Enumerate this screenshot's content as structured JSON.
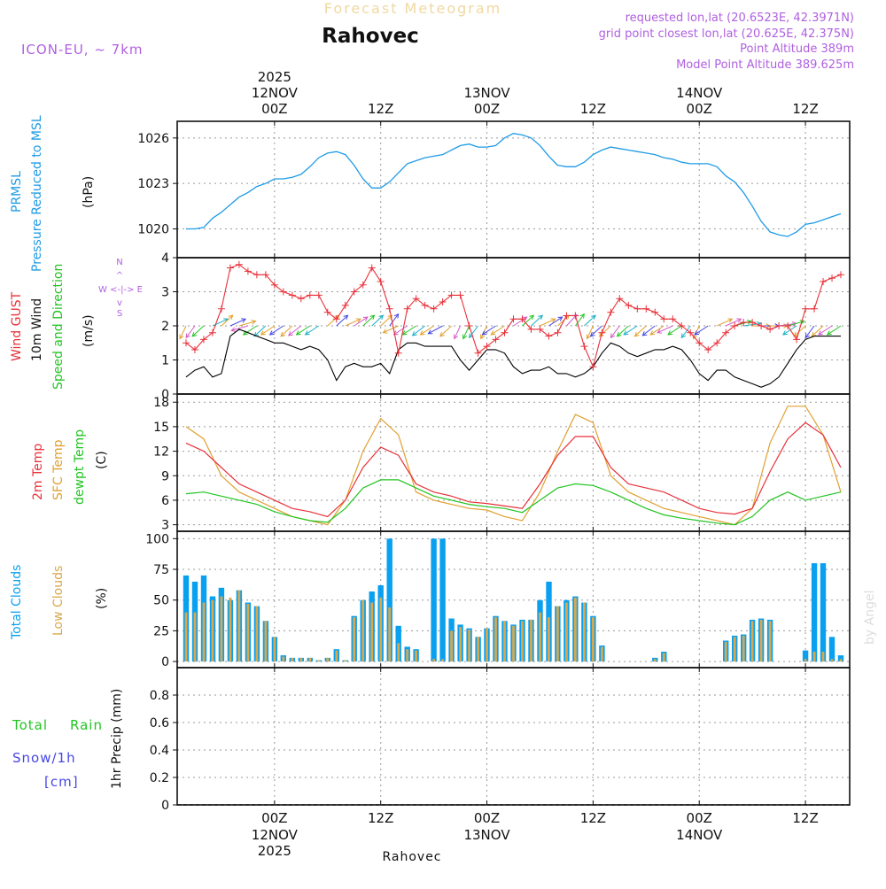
{
  "header": {
    "banner": "Forecast Meteogram",
    "location": "Rahovec",
    "model": "ICON-EU, ~ 7km",
    "requested": "requested lon,lat (20.6523E, 42.3971N)",
    "grid_point": "grid point closest lon,lat (20.625E, 42.375N)",
    "point_altitude": "Point Altitude 389m",
    "model_altitude": "Model Point Altitude 389.625m"
  },
  "footer": {
    "location": "Rahovec",
    "credit": "by Angel"
  },
  "time_axis": {
    "year": "2025",
    "ticks": [
      {
        "hour": 0,
        "label": "00Z",
        "date": "12NOV"
      },
      {
        "hour": 12,
        "label": "12Z",
        "date": ""
      },
      {
        "hour": 24,
        "label": "00Z",
        "date": "13NOV"
      },
      {
        "hour": 36,
        "label": "12Z",
        "date": ""
      },
      {
        "hour": 48,
        "label": "00Z",
        "date": "14NOV"
      },
      {
        "hour": 60,
        "label": "12Z",
        "date": ""
      }
    ],
    "range_hours": [
      -11,
      65
    ]
  },
  "colors": {
    "pressure": "#1e9be6",
    "gust": "#e8313a",
    "wind": "#000000",
    "direction": "#22c422",
    "temp2m": "#e8313a",
    "sfc": "#e0a030",
    "dewpt": "#22c422",
    "total_cloud": "#0aa0f0",
    "low_cloud": "#d9a84a",
    "rain": "#22c422",
    "snow": "#4646e6",
    "header_lilac": "#b060e0",
    "banner": "#f0d9a0"
  },
  "panel_labels": {
    "pressure": [
      "PRMSL",
      "Pressure Reduced to MSL"
    ],
    "pressure_unit": "(hPa)",
    "wind_gust": "Wind GUST",
    "wind_10m": "10m Wind",
    "wind_dir": "Speed and Direction",
    "wind_unit": "(m/s)",
    "compass_n": "N",
    "compass_s": "S",
    "compass_we": "W <-|-> E",
    "temp2m": "2m Temp",
    "sfc": "SFC Temp",
    "dewpt": "dewpt Temp",
    "temp_unit": "(C)",
    "total_clouds": "Total Clouds",
    "low_clouds": "Low Clouds",
    "cloud_unit": "(%)",
    "total": "Total",
    "rain": "Rain",
    "snow": "Snow/1h",
    "snow_unit": "[cm]",
    "precip": "1hr Precip (mm)"
  },
  "chart_data": [
    {
      "type": "line",
      "title": "PRMSL Pressure Reduced to MSL",
      "ylabel": "hPa",
      "ylim": [
        1018.1,
        1027.1
      ],
      "yticks": [
        1020,
        1023,
        1026
      ],
      "yticklabels": [
        "1020",
        "1023",
        "1026"
      ],
      "series": [
        {
          "name": "PRMSL",
          "x": [
            -10,
            -9,
            -8,
            -7,
            -6,
            -5,
            -4,
            -3,
            -2,
            -1,
            0,
            1,
            2,
            3,
            4,
            5,
            6,
            7,
            8,
            9,
            10,
            11,
            12,
            13,
            14,
            15,
            16,
            17,
            18,
            19,
            20,
            21,
            22,
            23,
            24,
            25,
            26,
            27,
            28,
            29,
            30,
            31,
            32,
            33,
            34,
            35,
            36,
            37,
            38,
            39,
            40,
            41,
            42,
            43,
            44,
            45,
            46,
            47,
            48,
            49,
            50,
            51,
            52,
            53,
            54,
            55,
            56,
            57,
            58,
            59,
            60,
            61,
            62,
            63,
            64
          ],
          "values": [
            1020.0,
            1020.0,
            1020.1,
            1020.7,
            1021.1,
            1021.6,
            1022.1,
            1022.4,
            1022.8,
            1023.0,
            1023.3,
            1023.3,
            1023.4,
            1023.6,
            1024.1,
            1024.7,
            1025.0,
            1025.1,
            1024.9,
            1024.2,
            1023.3,
            1022.7,
            1022.7,
            1023.1,
            1023.7,
            1024.3,
            1024.5,
            1024.7,
            1024.8,
            1024.9,
            1025.2,
            1025.5,
            1025.6,
            1025.4,
            1025.4,
            1025.5,
            1026.0,
            1026.3,
            1026.2,
            1026.0,
            1025.5,
            1024.8,
            1024.2,
            1024.1,
            1024.1,
            1024.4,
            1024.9,
            1025.2,
            1025.4,
            1025.3,
            1025.2,
            1025.1,
            1025.0,
            1024.9,
            1024.7,
            1024.6,
            1024.4,
            1024.3,
            1024.3,
            1024.3,
            1024.1,
            1023.5,
            1023.1,
            1022.4,
            1021.5,
            1020.5,
            1019.8,
            1019.6,
            1019.5,
            1019.8,
            1020.3,
            1020.4,
            1020.6,
            1020.8,
            1021.0
          ]
        }
      ]
    },
    {
      "type": "line",
      "title": "Wind GUST / 10m Wind Speed and Direction",
      "ylabel": "m/s",
      "ylim": [
        0,
        4
      ],
      "yticks": [
        0,
        1,
        2,
        3,
        4
      ],
      "yticklabels": [
        "0",
        "1",
        "2",
        "3",
        "4"
      ],
      "series": [
        {
          "name": "Wind GUST",
          "x": [
            -10,
            -9,
            -8,
            -7,
            -6,
            -5,
            -4,
            -3,
            -2,
            -1,
            0,
            1,
            2,
            3,
            4,
            5,
            6,
            7,
            8,
            9,
            10,
            11,
            12,
            13,
            14,
            15,
            16,
            17,
            18,
            19,
            20,
            21,
            22,
            23,
            24,
            25,
            26,
            27,
            28,
            29,
            30,
            31,
            32,
            33,
            34,
            35,
            36,
            37,
            38,
            39,
            40,
            41,
            42,
            43,
            44,
            45,
            46,
            47,
            48,
            49,
            50,
            51,
            52,
            53,
            54,
            55,
            56,
            57,
            58,
            59,
            60,
            61,
            62,
            63,
            64
          ],
          "values": [
            1.5,
            1.3,
            1.6,
            1.8,
            2.5,
            3.7,
            3.8,
            3.6,
            3.5,
            3.5,
            3.2,
            3.0,
            2.9,
            2.8,
            2.9,
            2.9,
            2.4,
            2.2,
            2.6,
            3.0,
            3.2,
            3.7,
            3.3,
            2.5,
            1.2,
            2.5,
            2.8,
            2.6,
            2.5,
            2.7,
            2.9,
            2.9,
            2.0,
            1.2,
            1.4,
            1.6,
            1.8,
            2.2,
            2.2,
            1.9,
            1.9,
            1.7,
            1.8,
            2.3,
            2.3,
            1.4,
            0.8,
            1.8,
            2.4,
            2.8,
            2.6,
            2.5,
            2.5,
            2.4,
            2.2,
            2.2,
            2.0,
            1.8,
            1.5,
            1.3,
            1.5,
            1.8,
            2.0,
            2.1,
            2.1,
            2.0,
            1.9,
            2.0,
            2.0,
            1.6,
            2.5,
            2.5,
            3.3,
            3.4,
            3.5
          ]
        },
        {
          "name": "10m Wind",
          "x": [
            -10,
            -9,
            -8,
            -7,
            -6,
            -5,
            -4,
            -3,
            -2,
            -1,
            0,
            1,
            2,
            3,
            4,
            5,
            6,
            7,
            8,
            9,
            10,
            11,
            12,
            13,
            14,
            15,
            16,
            17,
            18,
            19,
            20,
            21,
            22,
            23,
            24,
            25,
            26,
            27,
            28,
            29,
            30,
            31,
            32,
            33,
            34,
            35,
            36,
            37,
            38,
            39,
            40,
            41,
            42,
            43,
            44,
            45,
            46,
            47,
            48,
            49,
            50,
            51,
            52,
            53,
            54,
            55,
            56,
            57,
            58,
            59,
            60,
            61,
            62,
            63,
            64
          ],
          "values": [
            0.5,
            0.7,
            0.8,
            0.5,
            0.6,
            1.7,
            1.9,
            1.8,
            1.7,
            1.6,
            1.5,
            1.5,
            1.4,
            1.3,
            1.4,
            1.3,
            1.0,
            0.4,
            0.8,
            0.9,
            0.8,
            0.8,
            0.9,
            0.6,
            1.3,
            1.5,
            1.5,
            1.4,
            1.4,
            1.4,
            1.4,
            1.0,
            0.7,
            1.0,
            1.3,
            1.3,
            1.2,
            0.8,
            0.6,
            0.7,
            0.7,
            0.8,
            0.6,
            0.6,
            0.5,
            0.6,
            0.8,
            1.2,
            1.5,
            1.4,
            1.2,
            1.1,
            1.2,
            1.3,
            1.3,
            1.4,
            1.3,
            1.0,
            0.6,
            0.4,
            0.7,
            0.7,
            0.5,
            0.4,
            0.3,
            0.2,
            0.3,
            0.5,
            0.9,
            1.3,
            1.6,
            1.7,
            1.7,
            1.7,
            1.7
          ]
        }
      ],
      "direction_arrows": "plotted along the 2 m/s line; tail shows direction wind blows from"
    },
    {
      "type": "line",
      "title": "2m Temp / SFC Temp / dewpt Temp",
      "ylabel": "C",
      "ylim": [
        2.2,
        19
      ],
      "yticks": [
        3,
        6,
        9,
        12,
        15,
        18
      ],
      "yticklabels": [
        "3",
        "6",
        "9",
        "12",
        "15",
        "18"
      ],
      "series": [
        {
          "name": "2m Temp",
          "x": [
            -10,
            -8,
            -6,
            -4,
            -2,
            0,
            2,
            4,
            6,
            8,
            10,
            12,
            14,
            16,
            18,
            20,
            22,
            24,
            26,
            28,
            30,
            32,
            34,
            36,
            38,
            40,
            42,
            44,
            46,
            48,
            50,
            52,
            54,
            56,
            58,
            60,
            62,
            64
          ],
          "values": [
            13,
            12,
            10,
            8,
            7,
            6,
            5,
            4.6,
            4,
            6,
            10,
            12.5,
            11.5,
            8,
            7,
            6.5,
            5.8,
            5.6,
            5.3,
            5,
            8,
            11.5,
            13.8,
            13.8,
            10,
            8,
            7.5,
            7,
            6,
            5,
            4.5,
            4.3,
            5,
            9.5,
            13.5,
            15.5,
            14,
            10
          ]
        },
        {
          "name": "SFC Temp",
          "x": [
            -10,
            -8,
            -6,
            -4,
            -2,
            0,
            2,
            4,
            6,
            8,
            10,
            12,
            14,
            16,
            18,
            20,
            22,
            24,
            26,
            28,
            30,
            32,
            34,
            36,
            38,
            40,
            42,
            44,
            46,
            48,
            50,
            52,
            54,
            56,
            58,
            60,
            62,
            64
          ],
          "values": [
            15,
            13.5,
            9,
            7,
            6,
            5,
            4,
            3.5,
            3,
            6,
            12,
            16,
            14,
            7,
            6,
            5.5,
            5,
            4.8,
            4,
            3.5,
            7,
            12,
            16.5,
            15.5,
            9,
            7,
            6,
            5,
            4.5,
            4,
            3.5,
            3,
            5,
            13,
            17.5,
            17.5,
            14,
            7
          ]
        },
        {
          "name": "dewpt Temp",
          "x": [
            -10,
            -8,
            -6,
            -4,
            -2,
            0,
            2,
            4,
            6,
            8,
            10,
            12,
            14,
            16,
            18,
            20,
            22,
            24,
            26,
            28,
            30,
            32,
            34,
            36,
            38,
            40,
            42,
            44,
            46,
            48,
            50,
            52,
            54,
            56,
            58,
            60,
            62,
            64
          ],
          "values": [
            6.8,
            7,
            6.5,
            6,
            5.5,
            4.6,
            4,
            3.5,
            3.3,
            5,
            7.5,
            8.5,
            8.5,
            7.5,
            6.5,
            6,
            5.5,
            5.2,
            5,
            4.5,
            6,
            7.5,
            8,
            7.8,
            7,
            6,
            5,
            4.2,
            3.8,
            3.5,
            3.2,
            3,
            4,
            6,
            7,
            6,
            6.5,
            7
          ]
        }
      ]
    },
    {
      "type": "bar",
      "title": "Total Clouds / Low Clouds",
      "ylabel": "%",
      "ylim": [
        -5,
        106
      ],
      "yticks": [
        0,
        25,
        50,
        75,
        100
      ],
      "yticklabels": [
        "0",
        "25",
        "50",
        "75",
        "100"
      ],
      "x": [
        -10,
        -9,
        -8,
        -7,
        -6,
        -5,
        -4,
        -3,
        -2,
        -1,
        0,
        1,
        2,
        3,
        4,
        5,
        6,
        7,
        8,
        9,
        10,
        11,
        12,
        13,
        14,
        15,
        16,
        17,
        18,
        19,
        20,
        21,
        22,
        23,
        24,
        25,
        26,
        27,
        28,
        29,
        30,
        31,
        32,
        33,
        34,
        35,
        36,
        37,
        38,
        39,
        40,
        41,
        42,
        43,
        44,
        45,
        46,
        47,
        48,
        49,
        50,
        51,
        52,
        53,
        54,
        55,
        56,
        57,
        58,
        59,
        60,
        61,
        62,
        63,
        64
      ],
      "series": [
        {
          "name": "Total Clouds",
          "values": [
            70,
            65,
            70,
            53,
            60,
            50,
            58,
            48,
            45,
            33,
            20,
            5,
            3,
            3,
            3,
            1,
            3,
            10,
            1,
            37,
            50,
            57,
            62,
            100,
            29,
            12,
            10,
            0,
            100,
            100,
            35,
            30,
            27,
            20,
            27,
            37,
            33,
            30,
            34,
            34,
            50,
            65,
            45,
            50,
            53,
            48,
            37,
            13,
            0,
            0,
            0,
            0,
            0,
            3,
            8,
            0,
            0,
            0,
            0,
            0,
            0,
            17,
            21,
            22,
            34,
            35,
            34,
            0,
            0,
            0,
            9,
            80,
            80,
            20,
            5
          ]
        },
        {
          "name": "Low Clouds",
          "values": [
            40,
            40,
            48,
            50,
            53,
            52,
            58,
            47,
            45,
            33,
            20,
            4,
            3,
            3,
            3,
            1,
            3,
            9,
            1,
            36,
            50,
            48,
            52,
            44,
            15,
            10,
            9,
            0,
            2,
            2,
            25,
            28,
            26,
            20,
            27,
            36,
            33,
            29,
            33,
            34,
            40,
            36,
            45,
            48,
            52,
            48,
            36,
            12,
            0,
            0,
            0,
            0,
            0,
            2,
            7,
            0,
            0,
            0,
            0,
            0,
            0,
            16,
            20,
            21,
            33,
            34,
            33,
            0,
            0,
            0,
            2,
            8,
            8,
            2,
            2
          ]
        }
      ]
    },
    {
      "type": "line",
      "title": "1hr Precip (mm) Total Rain Snow/1h",
      "ylabel": "1hr Precip (mm)",
      "ylim": [
        0,
        1
      ],
      "yticks": [
        0,
        0.2,
        0.4,
        0.6,
        0.8
      ],
      "yticklabels": [
        "0",
        "0.2",
        "0.4",
        "0.6",
        "0.8"
      ],
      "series": [
        {
          "name": "Total Rain",
          "x": [
            -11,
            65
          ],
          "values": [
            0,
            0
          ]
        },
        {
          "name": "Snow/1h",
          "x": [
            -11,
            65
          ],
          "values": [
            0,
            0
          ]
        }
      ]
    }
  ]
}
